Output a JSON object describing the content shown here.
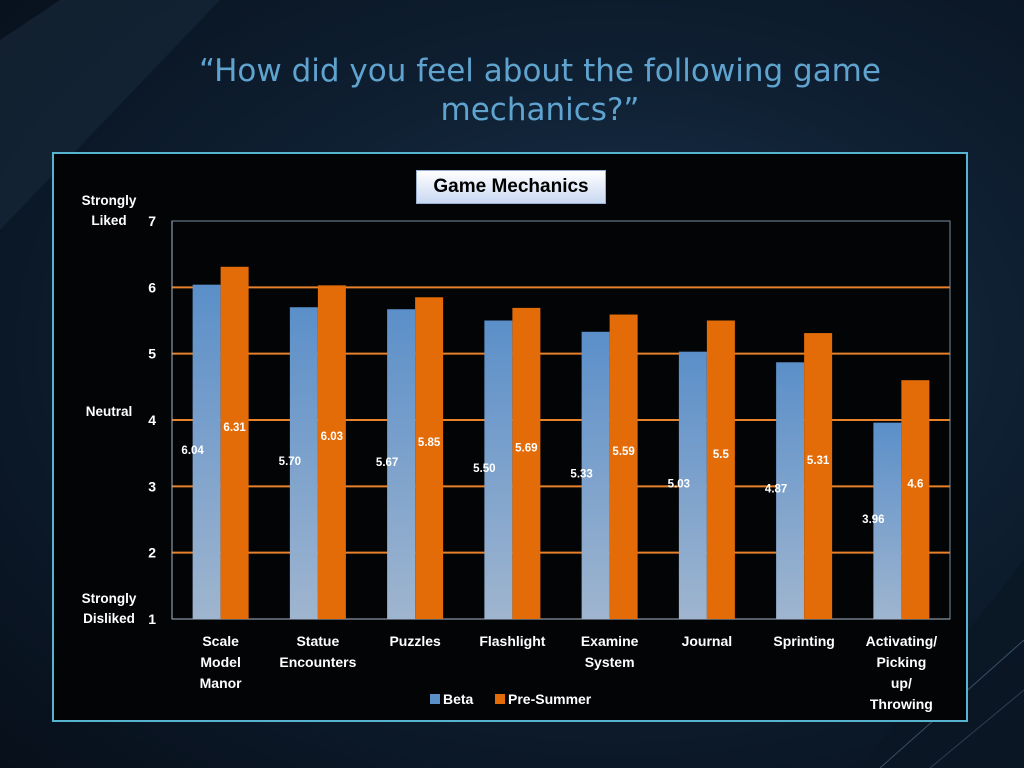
{
  "slide": {
    "title": "“How did you feel about the following game mechanics?”"
  },
  "colors": {
    "beta": "#5b8fc9",
    "pre_summer": "#e36c09",
    "gridline": "#e8822a",
    "frame": "#56b4d0",
    "title": "#5fa3cf"
  },
  "chart_data": {
    "type": "bar",
    "title": "Game Mechanics",
    "xlabel": "",
    "ylabel": "",
    "ylim": [
      1,
      7
    ],
    "yticks": [
      1,
      2,
      3,
      4,
      5,
      6,
      7
    ],
    "grid": true,
    "legend_position": "bottom",
    "y_annotations": [
      {
        "value": 7,
        "label": "Strongly Liked"
      },
      {
        "value": 4,
        "label": "Neutral"
      },
      {
        "value": 1,
        "label": "Strongly Disliked"
      }
    ],
    "categories": [
      "Scale Model Manor",
      "Statue Encounters",
      "Puzzles",
      "Flashlight",
      "Examine System",
      "Journal",
      "Sprinting",
      "Activating/ Picking up/ Throwing"
    ],
    "series": [
      {
        "name": "Beta",
        "values": [
          6.04,
          5.7,
          5.67,
          5.5,
          5.33,
          5.03,
          4.87,
          3.96
        ],
        "labels": [
          "6.04",
          "5.70",
          "5.67",
          "5.50",
          "5.33",
          "5.03",
          "4.87",
          "3.96"
        ]
      },
      {
        "name": "Pre-Summer",
        "values": [
          6.31,
          6.03,
          5.85,
          5.69,
          5.59,
          5.5,
          5.31,
          4.6
        ],
        "labels": [
          "6.31",
          "6.03",
          "5.85",
          "5.69",
          "5.59",
          "5.5",
          "5.31",
          "4.6"
        ]
      }
    ]
  }
}
